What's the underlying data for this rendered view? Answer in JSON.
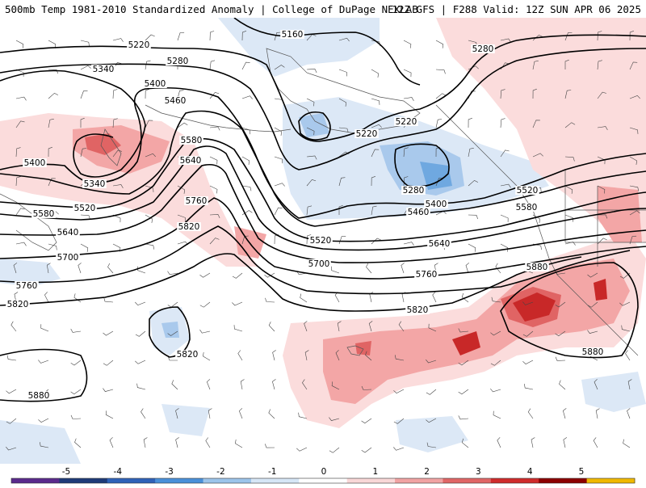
{
  "header": {
    "title_left": "500mb Temp 1981-2010 Standardized Anomaly | College of DuPage NEXLAB",
    "title_right": "12Z GFS | F288 Valid: 12Z SUN APR 06 2025"
  },
  "map": {
    "contour_labels": [
      "5160",
      "5220",
      "5220",
      "5220",
      "5280",
      "5280",
      "5280",
      "5340",
      "5340",
      "5400",
      "5400",
      "5400",
      "5460",
      "5460",
      "5520",
      "5520",
      "5520",
      "5580",
      "5580",
      "5580",
      "5640",
      "5640",
      "5640",
      "5700",
      "5700",
      "5760",
      "5760",
      "5760",
      "5820",
      "5820",
      "5820",
      "5820",
      "5880",
      "5880",
      "5880"
    ],
    "colors": {
      "contour": "#000000",
      "coast": "#555555",
      "pos_1": "#fbdcdc",
      "pos_2": "#f3a6a6",
      "pos_3": "#e06464",
      "pos_4": "#c82828",
      "neg_1": "#dce8f6",
      "neg_2": "#a9c9ec",
      "neg_3": "#6fa8e0"
    }
  },
  "colorbar": {
    "ticks": [
      "-5",
      "-4",
      "-3",
      "-2",
      "-1",
      "0",
      "1",
      "2",
      "3",
      "4",
      "5"
    ],
    "colors": [
      "#5a2a8c",
      "#1e3a78",
      "#2f62b8",
      "#4a90d9",
      "#9cc4ea",
      "#d6e6f6",
      "#ffffff",
      "#f9d7d7",
      "#f1a3a3",
      "#e06666",
      "#cf2b2b",
      "#8c0000",
      "#f0b800"
    ]
  }
}
